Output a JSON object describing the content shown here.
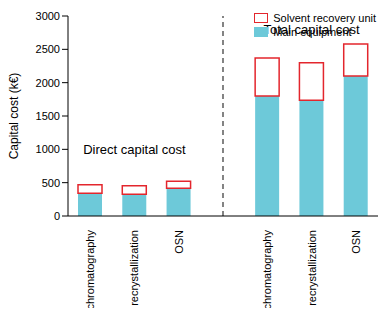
{
  "chart_data": {
    "type": "bar",
    "stacked": true,
    "y_label": "Capital cost (k€)",
    "categories": [
      "chromatography",
      "recrystallization",
      "OSN",
      null,
      "chromatography",
      "recrystallization",
      "OSN"
    ],
    "series": [
      {
        "name": "Main equipment",
        "color": "#6dc9d9",
        "values": [
          340,
          325,
          415,
          null,
          1800,
          1735,
          2100
        ]
      },
      {
        "name": "Solvent recovery unit",
        "color": "#e3262d",
        "values": [
          130,
          130,
          105,
          null,
          570,
          565,
          480
        ]
      }
    ],
    "ylim": [
      0,
      3000
    ],
    "yticks": [
      0,
      500,
      1000,
      1500,
      2000,
      2500,
      3000
    ],
    "grid": false,
    "legend": "upper right",
    "annotations": [
      {
        "text": "Direct capital cost",
        "x": 1,
        "y": 1000
      },
      {
        "text": "Total capital cost",
        "x": 5,
        "y": 2800
      }
    ]
  }
}
